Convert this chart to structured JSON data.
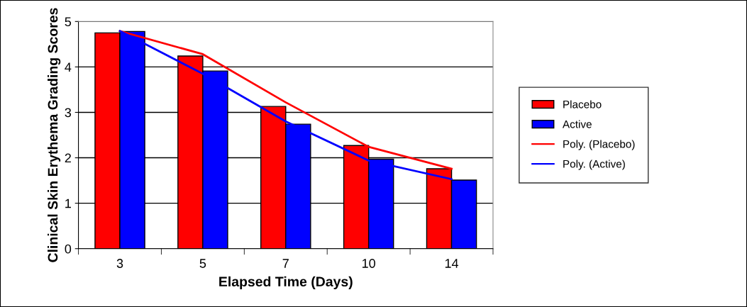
{
  "chart_data": {
    "type": "bar",
    "xlabel": "Elapsed Time (Days)",
    "ylabel": "Clinical Skin Erythema Grading Scores",
    "categories": [
      "3",
      "5",
      "7",
      "10",
      "14"
    ],
    "series": [
      {
        "name": "Placebo",
        "color": "#ff0000",
        "values": [
          4.75,
          4.24,
          3.13,
          2.27,
          1.76
        ]
      },
      {
        "name": "Active",
        "color": "#0000ff",
        "values": [
          4.78,
          3.91,
          2.74,
          1.97,
          1.51
        ]
      },
      {
        "name": "Poly. (Placebo)",
        "type": "line",
        "color": "#ff0000",
        "values": [
          4.79,
          4.28,
          3.22,
          2.24,
          1.76
        ]
      },
      {
        "name": "Poly. (Active)",
        "type": "line",
        "color": "#0000ff",
        "values": [
          4.79,
          3.85,
          2.8,
          1.94,
          1.53
        ]
      }
    ],
    "ylim": [
      0,
      5
    ],
    "yticks": [
      0,
      1,
      2,
      3,
      4,
      5
    ],
    "grid": "y",
    "legend": "right",
    "marker": "none",
    "line_style": "solid"
  }
}
